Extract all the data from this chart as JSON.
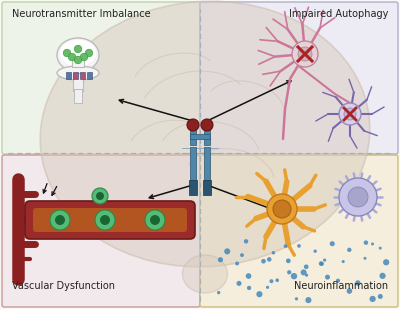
{
  "bg_color": "#f8f8f5",
  "brain_color": "#d8cbbe",
  "brain_edge_color": "#c8b8a8",
  "quadrant_colors": {
    "top_left": "#edf3e8",
    "top_right": "#eceaf4",
    "bottom_left": "#f2e8ed",
    "bottom_right": "#f5edda"
  },
  "quadrant_edge_colors": {
    "top_left": "#b8cfa0",
    "top_right": "#a8a8cc",
    "bottom_left": "#c89090",
    "bottom_right": "#c8b870"
  },
  "labels": {
    "top_left": "Neurotransmitter Imbalance",
    "top_right": "Impaired Autophagy",
    "bottom_left": "Vascular Dysfunction",
    "bottom_right": "Neuroinflammation"
  },
  "label_fontsize": 7.0,
  "receptor_color": "#4d88aa",
  "receptor_dark": "#2a5570",
  "receptor_cap_color": "#8b2020",
  "divider_color": "#99aabb",
  "arrow_color": "#111111",
  "vascular_red": "#9b2b2b",
  "vascular_lumen": "#c8781a",
  "cell_green": "#55bb77",
  "neuron_pink": "#cc7799",
  "neuron_purple": "#7766aa",
  "microglia_blue": "#8888cc",
  "astrocyte_orange": "#e8a030",
  "dot_blue": "#4488bb",
  "x_mark_color": "#aa2222",
  "synapse_white": "#f5f5f5",
  "synapse_stem": "#f0f0f0"
}
